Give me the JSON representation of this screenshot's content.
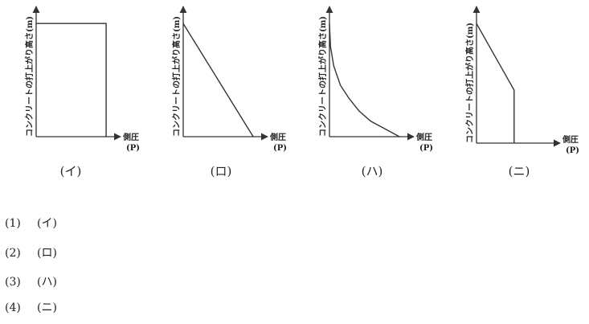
{
  "diagrams": [
    {
      "y_label": "コンクリートの打上がり高さ(m)",
      "x_label": "側圧",
      "x_unit": "(P)",
      "caption": "(イ)",
      "shape": "rectangle",
      "points": [
        [
          0,
          0.88
        ],
        [
          0.83,
          0.88
        ],
        [
          0.83,
          0
        ]
      ]
    },
    {
      "y_label": "コンクリートの打上がり高さ(m)",
      "x_label": "側圧",
      "x_unit": "(P)",
      "caption": "(ロ)",
      "shape": "linear",
      "points": [
        [
          0,
          0.88
        ],
        [
          0.83,
          0
        ]
      ]
    },
    {
      "y_label": "コンクリートの打上がり高さ(m)",
      "x_label": "側圧",
      "x_unit": "(P)",
      "caption": "(ハ)",
      "shape": "concave curve",
      "points": [
        [
          0,
          0.88
        ],
        [
          0.0125,
          0.7
        ],
        [
          0.05,
          0.55
        ],
        [
          0.13,
          0.4
        ],
        [
          0.23,
          0.3
        ],
        [
          0.35,
          0.2
        ],
        [
          0.49,
          0.12
        ],
        [
          0.66,
          0.06
        ],
        [
          0.83,
          0
        ]
      ]
    },
    {
      "y_label": "コンクリートの打上がり高さ(m)",
      "x_label": "側圧",
      "x_unit": "(P)",
      "caption": "(ニ)",
      "shape": "linear then constant",
      "points": [
        [
          0,
          0.88
        ],
        [
          0.45,
          0.39
        ],
        [
          0.45,
          0
        ]
      ]
    }
  ],
  "choices": [
    {
      "number": "(1)",
      "label": "(イ)"
    },
    {
      "number": "(2)",
      "label": "(ロ)"
    },
    {
      "number": "(3)",
      "label": "(ハ)"
    },
    {
      "number": "(4)",
      "label": "(ニ)"
    }
  ]
}
